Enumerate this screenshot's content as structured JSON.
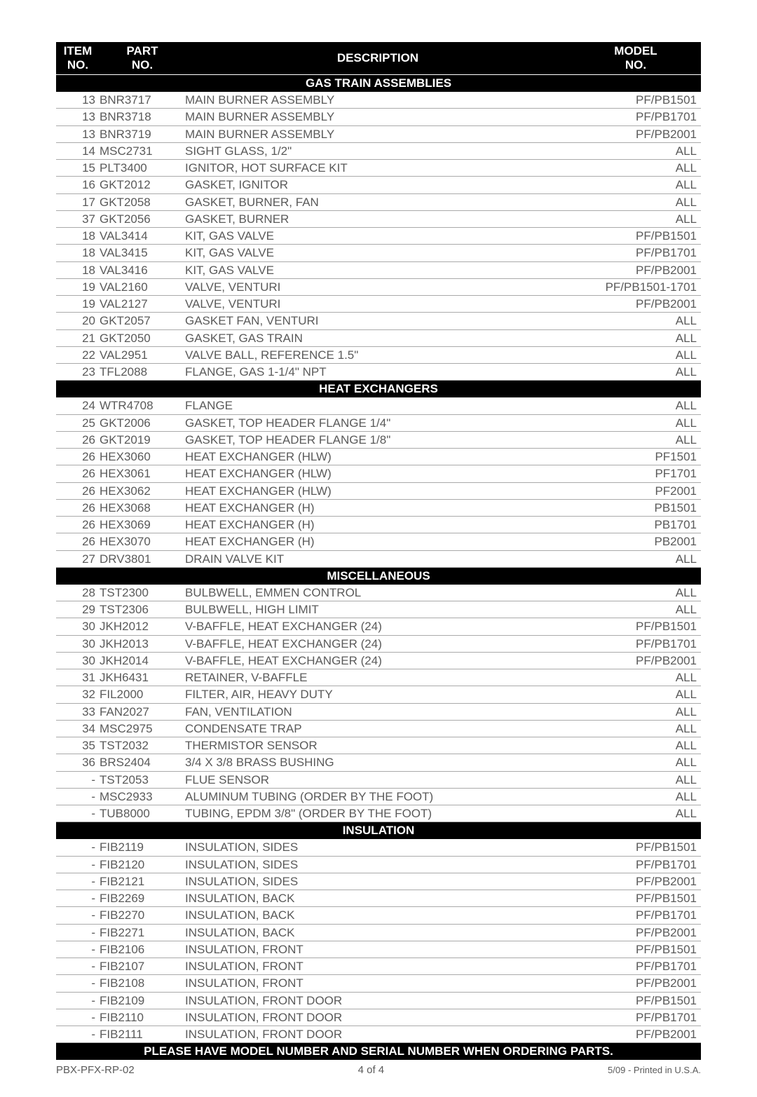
{
  "header": {
    "item": "ITEM",
    "item_sub": "NO.",
    "part": "PART",
    "part_sub": "NO.",
    "desc": "DESCRIPTION",
    "model": "MODEL",
    "model_sub": "NO."
  },
  "sections": [
    {
      "title": "GAS TRAIN ASSEMBLIES",
      "rows": [
        {
          "item": "13",
          "part": "BNR3717",
          "desc": "MAIN BURNER ASSEMBLY",
          "model": "PF/PB1501"
        },
        {
          "item": "13",
          "part": "BNR3718",
          "desc": "MAIN BURNER ASSEMBLY",
          "model": "PF/PB1701"
        },
        {
          "item": "13",
          "part": "BNR3719",
          "desc": "MAIN BURNER ASSEMBLY",
          "model": "PF/PB2001"
        },
        {
          "item": "14",
          "part": "MSC2731",
          "desc": "SIGHT GLASS, 1/2\"",
          "model": "ALL"
        },
        {
          "item": "15",
          "part": "PLT3400",
          "desc": "IGNITOR, HOT SURFACE KIT",
          "model": "ALL"
        },
        {
          "item": "16",
          "part": "GKT2012",
          "desc": "GASKET, IGNITOR",
          "model": "ALL"
        },
        {
          "item": "17",
          "part": "GKT2058",
          "desc": "GASKET, BURNER, FAN",
          "model": "ALL"
        },
        {
          "item": "37",
          "part": "GKT2056",
          "desc": "GASKET, BURNER",
          "model": "ALL"
        },
        {
          "item": "18",
          "part": "VAL3414",
          "desc": "KIT, GAS VALVE",
          "model": "PF/PB1501"
        },
        {
          "item": "18",
          "part": "VAL3415",
          "desc": "KIT, GAS VALVE",
          "model": "PF/PB1701"
        },
        {
          "item": "18",
          "part": "VAL3416",
          "desc": "KIT, GAS VALVE",
          "model": "PF/PB2001"
        },
        {
          "item": "19",
          "part": "VAL2160",
          "desc": "VALVE, VENTURI",
          "model": "PF/PB1501-1701"
        },
        {
          "item": "19",
          "part": "VAL2127",
          "desc": "VALVE, VENTURI",
          "model": "PF/PB2001"
        },
        {
          "item": "20",
          "part": "GKT2057",
          "desc": "GASKET FAN, VENTURI",
          "model": "ALL"
        },
        {
          "item": "21",
          "part": "GKT2050",
          "desc": "GASKET, GAS TRAIN",
          "model": "ALL"
        },
        {
          "item": "22",
          "part": "VAL2951",
          "desc": "VALVE BALL, REFERENCE 1.5\"",
          "model": "ALL"
        },
        {
          "item": "23",
          "part": "TFL2088",
          "desc": "FLANGE, GAS 1-1/4\" NPT",
          "model": "ALL"
        }
      ]
    },
    {
      "title": "HEAT EXCHANGERS",
      "rows": [
        {
          "item": "24",
          "part": "WTR4708",
          "desc": "FLANGE",
          "model": "ALL"
        },
        {
          "item": "25",
          "part": "GKT2006",
          "desc": "GASKET, TOP HEADER FLANGE 1/4\"",
          "model": "ALL"
        },
        {
          "item": "26",
          "part": "GKT2019",
          "desc": "GASKET, TOP HEADER FLANGE 1/8\"",
          "model": "ALL"
        },
        {
          "item": "26",
          "part": "HEX3060",
          "desc": "HEAT EXCHANGER (HLW)",
          "model": "PF1501"
        },
        {
          "item": "26",
          "part": "HEX3061",
          "desc": "HEAT EXCHANGER (HLW)",
          "model": "PF1701"
        },
        {
          "item": "26",
          "part": "HEX3062",
          "desc": "HEAT EXCHANGER (HLW)",
          "model": "PF2001"
        },
        {
          "item": "26",
          "part": "HEX3068",
          "desc": "HEAT EXCHANGER (H)",
          "model": "PB1501"
        },
        {
          "item": "26",
          "part": "HEX3069",
          "desc": "HEAT EXCHANGER (H)",
          "model": "PB1701"
        },
        {
          "item": "26",
          "part": "HEX3070",
          "desc": "HEAT EXCHANGER (H)",
          "model": "PB2001"
        },
        {
          "item": "27",
          "part": "DRV3801",
          "desc": "DRAIN VALVE KIT",
          "model": "ALL"
        }
      ]
    },
    {
      "title": "MISCELLANEOUS",
      "rows": [
        {
          "item": "28",
          "part": "TST2300",
          "desc": "BULBWELL, EMMEN CONTROL",
          "model": "ALL"
        },
        {
          "item": "29",
          "part": "TST2306",
          "desc": "BULBWELL, HIGH LIMIT",
          "model": "ALL"
        },
        {
          "item": "30",
          "part": "JKH2012",
          "desc": "V-BAFFLE, HEAT EXCHANGER (24)",
          "model": "PF/PB1501"
        },
        {
          "item": "30",
          "part": "JKH2013",
          "desc": "V-BAFFLE, HEAT EXCHANGER (24)",
          "model": "PF/PB1701"
        },
        {
          "item": "30",
          "part": "JKH2014",
          "desc": "V-BAFFLE, HEAT EXCHANGER (24)",
          "model": "PF/PB2001"
        },
        {
          "item": "31",
          "part": "JKH6431",
          "desc": "RETAINER, V-BAFFLE",
          "model": "ALL"
        },
        {
          "item": "32",
          "part": "FIL2000",
          "desc": "FILTER, AIR, HEAVY DUTY",
          "model": "ALL"
        },
        {
          "item": "33",
          "part": "FAN2027",
          "desc": "FAN, VENTILATION",
          "model": "ALL"
        },
        {
          "item": "34",
          "part": "MSC2975",
          "desc": "CONDENSATE TRAP",
          "model": "ALL"
        },
        {
          "item": "35",
          "part": "TST2032",
          "desc": "THERMISTOR SENSOR",
          "model": "ALL"
        },
        {
          "item": "36",
          "part": "BRS2404",
          "desc": "3/4 X 3/8 BRASS BUSHING",
          "model": "ALL"
        },
        {
          "item": "-",
          "part": "TST2053",
          "desc": "FLUE SENSOR",
          "model": "ALL"
        },
        {
          "item": "-",
          "part": "MSC2933",
          "desc": "ALUMINUM TUBING (ORDER BY THE FOOT)",
          "model": "ALL"
        },
        {
          "item": "-",
          "part": "TUB8000",
          "desc": "TUBING, EPDM 3/8\" (ORDER BY THE FOOT)",
          "model": "ALL"
        }
      ]
    },
    {
      "title": "INSULATION",
      "rows": [
        {
          "item": "-",
          "part": "FIB2119",
          "desc": "INSULATION, SIDES",
          "model": "PF/PB1501"
        },
        {
          "item": "-",
          "part": "FIB2120",
          "desc": "INSULATION, SIDES",
          "model": "PF/PB1701"
        },
        {
          "item": "-",
          "part": "FIB2121",
          "desc": "INSULATION, SIDES",
          "model": "PF/PB2001"
        },
        {
          "item": "-",
          "part": "FIB2269",
          "desc": "INSULATION, BACK",
          "model": "PF/PB1501"
        },
        {
          "item": "-",
          "part": "FIB2270",
          "desc": "INSULATION, BACK",
          "model": "PF/PB1701"
        },
        {
          "item": "-",
          "part": "FIB2271",
          "desc": "INSULATION, BACK",
          "model": "PF/PB2001"
        },
        {
          "item": "-",
          "part": "FIB2106",
          "desc": "INSULATION, FRONT",
          "model": "PF/PB1501"
        },
        {
          "item": "-",
          "part": "FIB2107",
          "desc": "INSULATION, FRONT",
          "model": "PF/PB1701"
        },
        {
          "item": "-",
          "part": "FIB2108",
          "desc": "INSULATION, FRONT",
          "model": "PF/PB2001"
        },
        {
          "item": "-",
          "part": "FIB2109",
          "desc": "INSULATION, FRONT DOOR",
          "model": "PF/PB1501"
        },
        {
          "item": "-",
          "part": "FIB2110",
          "desc": "INSULATION, FRONT DOOR",
          "model": "PF/PB1701"
        },
        {
          "item": "-",
          "part": "FIB2111",
          "desc": "INSULATION, FRONT DOOR",
          "model": "PF/PB2001"
        }
      ]
    }
  ],
  "footer_note": "PLEASE HAVE MODEL NUMBER AND SERIAL NUMBER WHEN ORDERING PARTS.",
  "page_footer": {
    "left": "PBX-PFX-RP-02",
    "center": "4 of 4",
    "right": "5/09 - Printed in U.S.A."
  }
}
